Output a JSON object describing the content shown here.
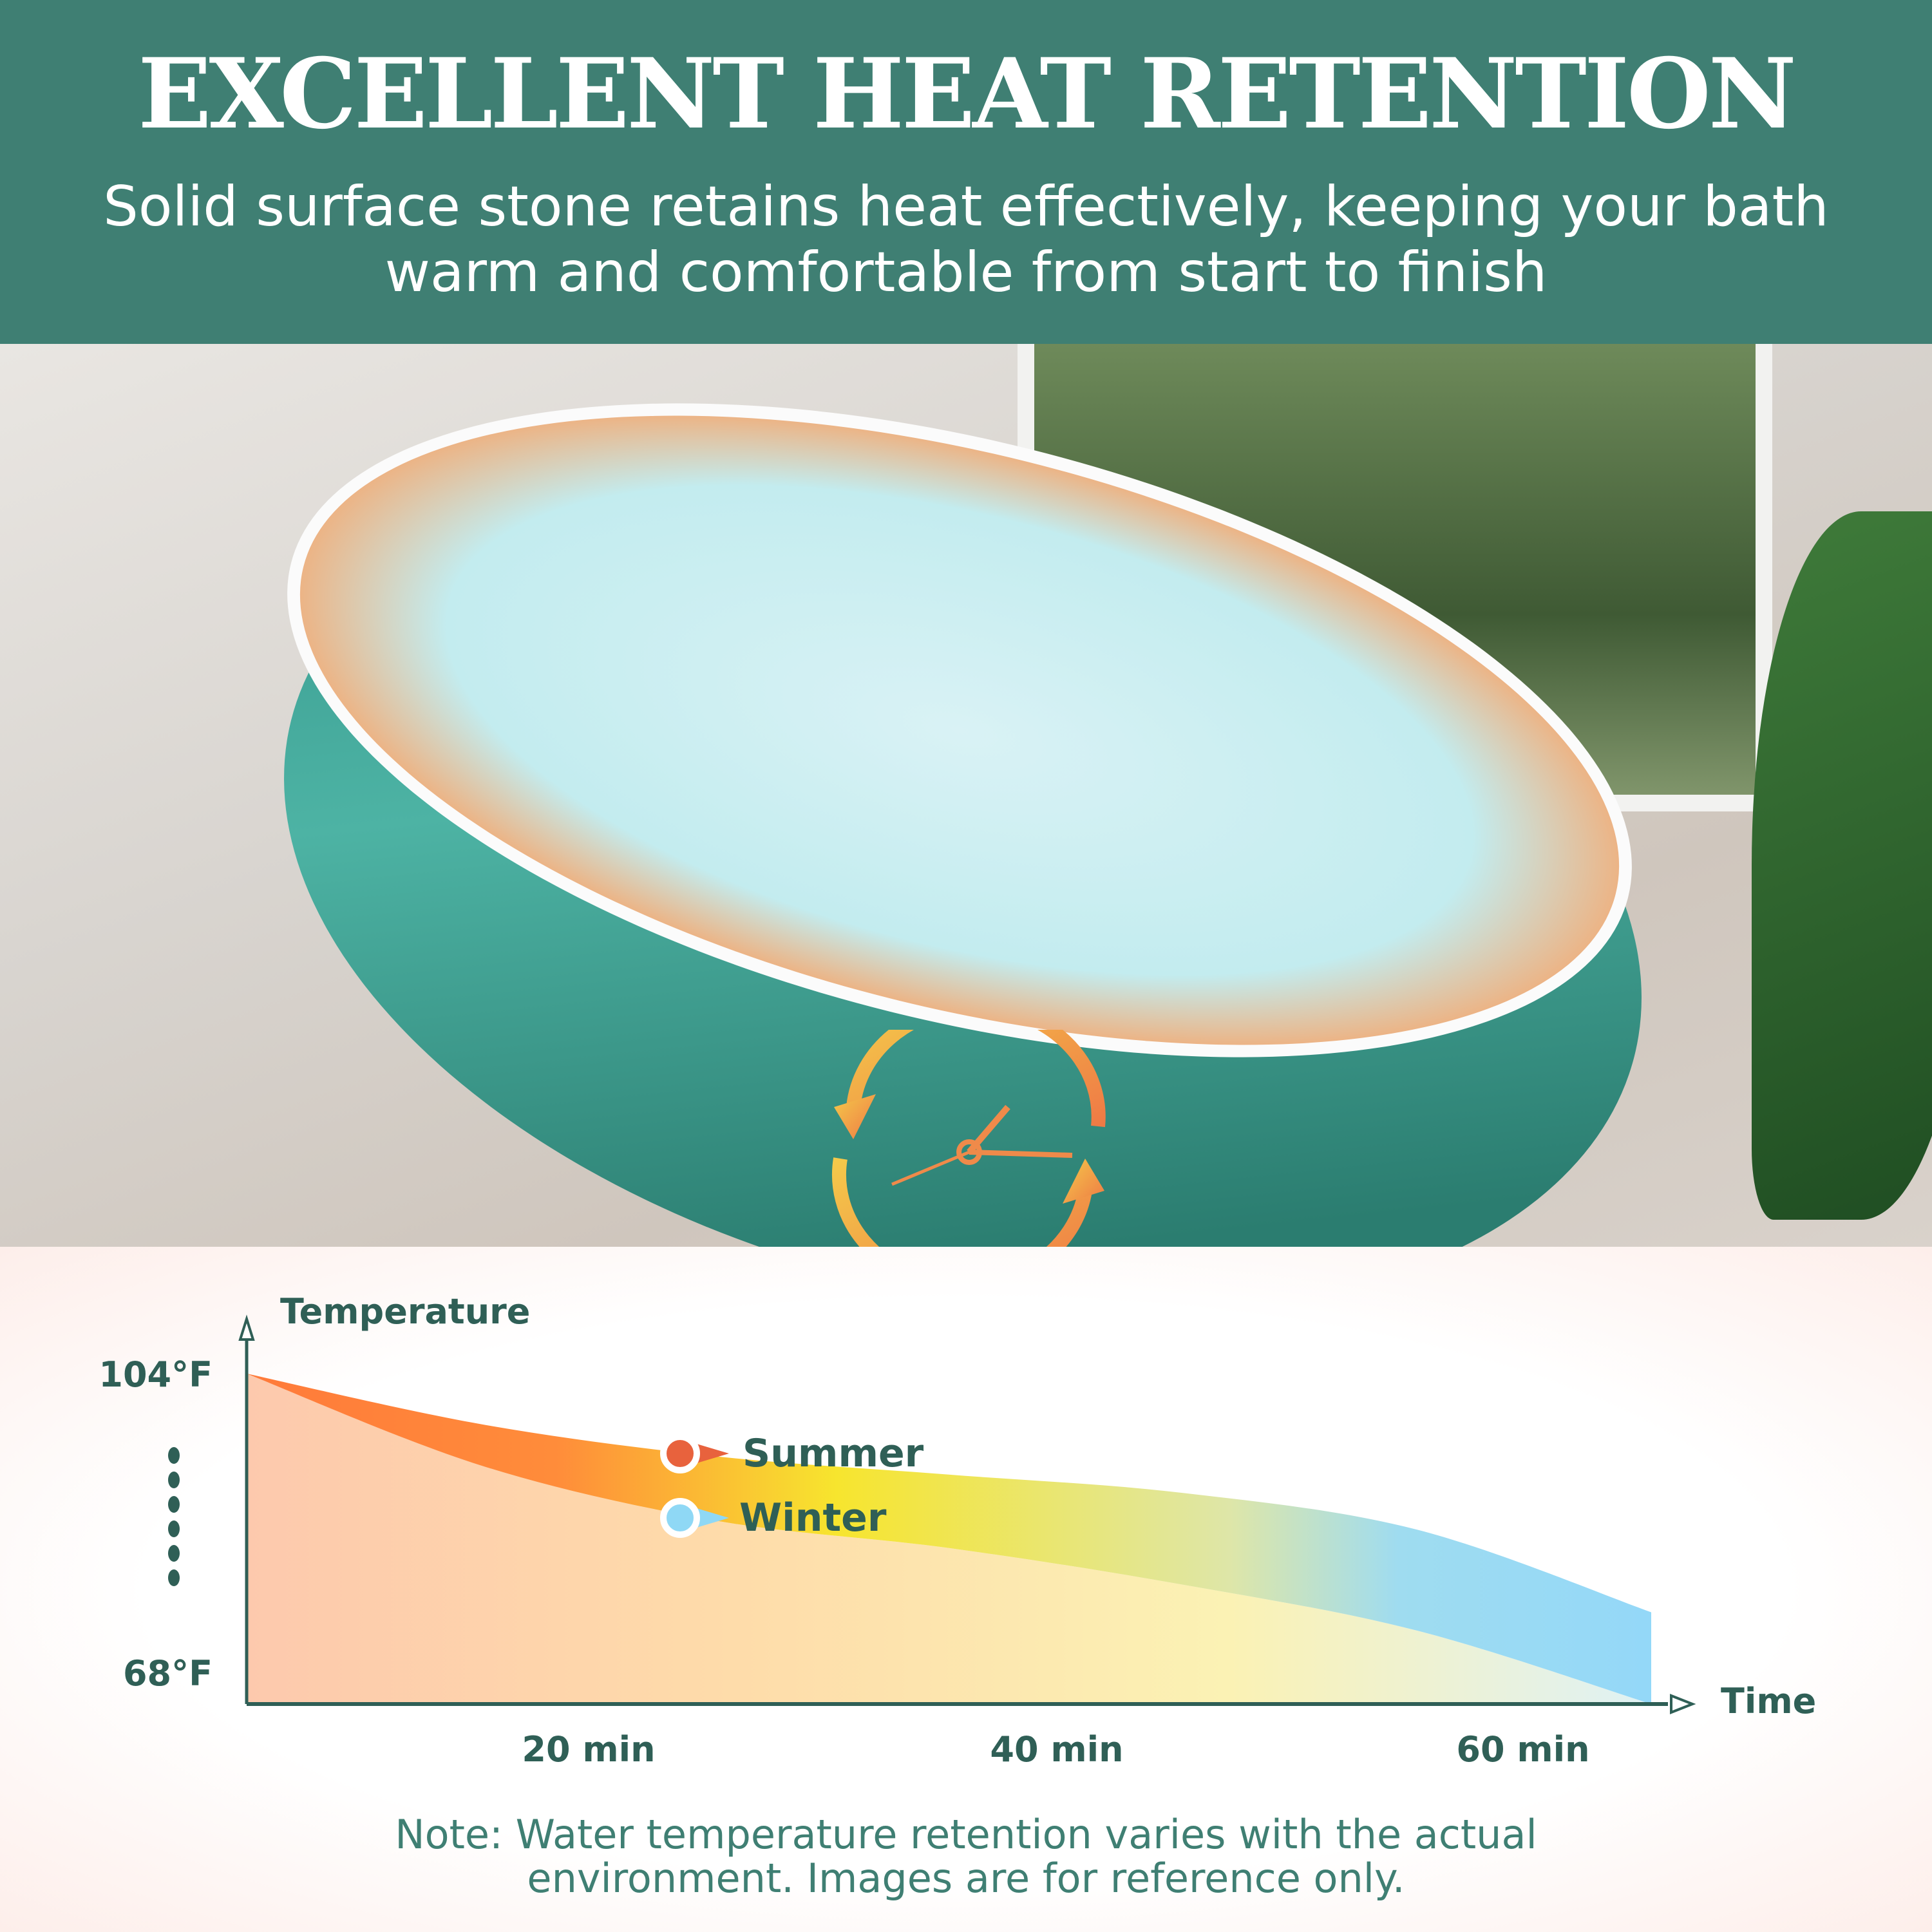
{
  "header": {
    "title": "EXCELLENT HEAT RETENTION",
    "subtitle": "Solid surface stone retains heat effectively, keeping your bath warm and comfortable from start to finish",
    "background_color": "#3f7f73"
  },
  "photo": {
    "icon": "clock-with-circular-arrows-icon"
  },
  "chart_data": {
    "type": "area",
    "title": "",
    "ylabel": "Temperature",
    "xlabel": "Time",
    "y_ticks": [
      "104°F",
      "68°F"
    ],
    "x_ticks": [
      "20 min",
      "40 min",
      "60 min"
    ],
    "ylim": [
      68,
      104
    ],
    "xlim": [
      0,
      62
    ],
    "grid": false,
    "legend_placement": "inline-center-left",
    "series": [
      {
        "name": "Summer",
        "color": "#e8623d",
        "x": [
          0,
          10,
          20,
          30,
          40,
          50,
          60
        ],
        "y": [
          104,
          98.5,
          95,
          93,
          91,
          87,
          78
        ]
      },
      {
        "name": "Winter",
        "color": "#8fd8f5",
        "x": [
          0,
          10,
          20,
          30,
          40,
          50,
          60
        ],
        "y": [
          104,
          94,
          88,
          85,
          81,
          76,
          68
        ]
      }
    ]
  },
  "note": "Note: Water temperature retention varies with the actual environment. Images are for reference only."
}
